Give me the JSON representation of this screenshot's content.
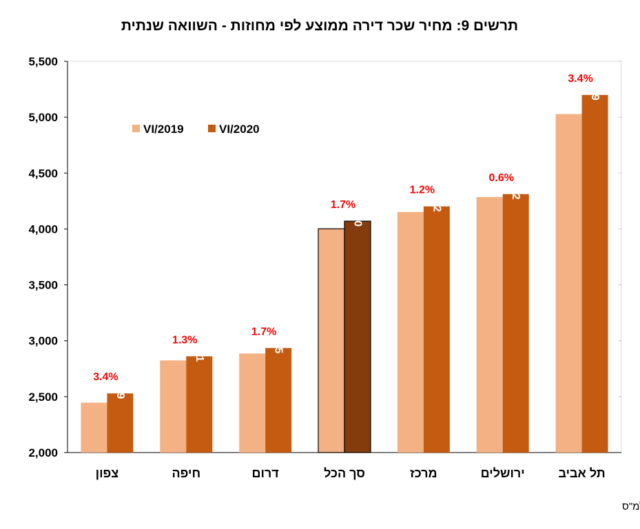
{
  "chart_data": {
    "type": "bar",
    "title": "תרשים 9: מחיר שכר דירה ממוצע לפי מחוזות - השוואה שנתית",
    "categories": [
      "צפון",
      "חיפה",
      "דרום",
      "סך הכל",
      "מרכז",
      "ירושלים",
      "תל אביב"
    ],
    "series": [
      {
        "name": "VI/2019",
        "values": [
          2446,
          2824,
          2886,
          4002,
          4152,
          4286,
          5028
        ],
        "color": "#F4B183"
      },
      {
        "name": "VI/2020",
        "values": [
          2529,
          2861,
          2935,
          4070,
          4202,
          4312,
          5199
        ],
        "color": "#C55A11",
        "value_labels": [
          "2,529",
          "2,861",
          "2,935",
          "4,070",
          "4,202",
          "4,312",
          "5,199"
        ]
      }
    ],
    "change_labels": [
      "3.4%",
      "1.3%",
      "1.7%",
      "1.7%",
      "1.2%",
      "0.6%",
      "3.4%"
    ],
    "highlight_category": "סך הכל",
    "highlight_color_2020": "#843C0C",
    "change_label_color": "#FF0000",
    "ylim": [
      2000,
      5500
    ],
    "yticks": [
      2000,
      2500,
      3000,
      3500,
      4000,
      4500,
      5000,
      5500
    ],
    "ytick_labels": [
      "2,000",
      "2,500",
      "3,000",
      "3,500",
      "4,000",
      "4,500",
      "5,000",
      "5,500"
    ],
    "legend_position": "top-left",
    "grid": false,
    "source": "מקור: סקר שכר דירה - למ\"ס"
  }
}
